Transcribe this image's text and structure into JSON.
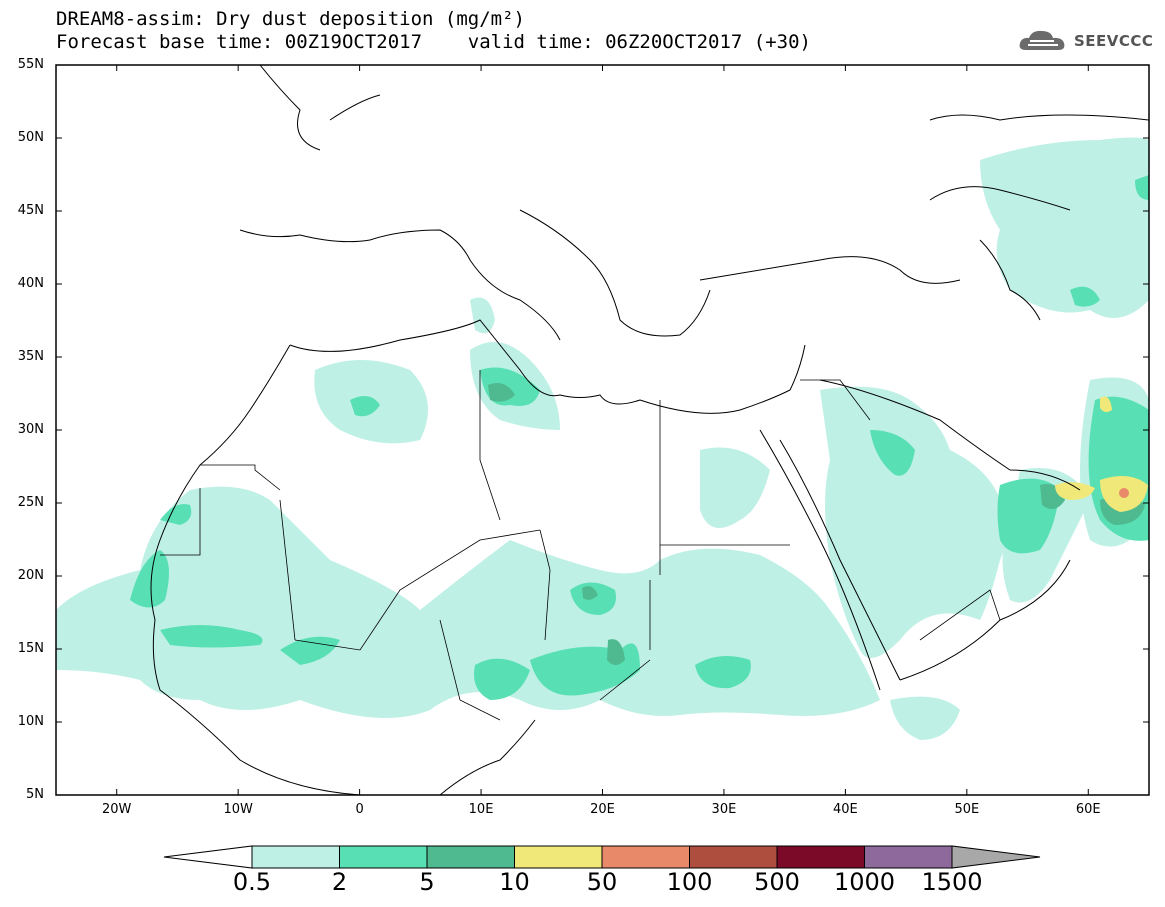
{
  "title": {
    "line1": "DREAM8-assim: Dry dust deposition (mg/m²)",
    "line2": "Forecast base time: 00Z19OCT2017    valid time: 06Z20OCT2017 (+30)"
  },
  "logo": {
    "text": "SEEVCCC",
    "icon": "cloud-logo-icon"
  },
  "map": {
    "lon_range": [
      -25,
      65
    ],
    "lat_range": [
      5,
      55
    ],
    "lat_labels": [
      "55N",
      "50N",
      "45N",
      "40N",
      "35N",
      "30N",
      "25N",
      "20N",
      "15N",
      "10N",
      "5N"
    ],
    "lon_labels": [
      "20W",
      "10W",
      "0",
      "10E",
      "20E",
      "30E",
      "40E",
      "50E",
      "60E"
    ],
    "field_colors": [
      "#bff0e6",
      "#58e0b4",
      "#4fb98f",
      "#f0e878",
      "#e8896a"
    ]
  },
  "colorbar": {
    "labels": [
      "0.5",
      "2",
      "5",
      "10",
      "50",
      "100",
      "500",
      "1000",
      "1500"
    ],
    "colors": [
      "#bff0e6",
      "#58e0b4",
      "#4fb98f",
      "#f0e878",
      "#e8896a",
      "#ae4e3f",
      "#7b0a29",
      "#8e6a9c"
    ],
    "left_end_color": "#ffffff",
    "right_end_color": "#a8a8a8"
  }
}
